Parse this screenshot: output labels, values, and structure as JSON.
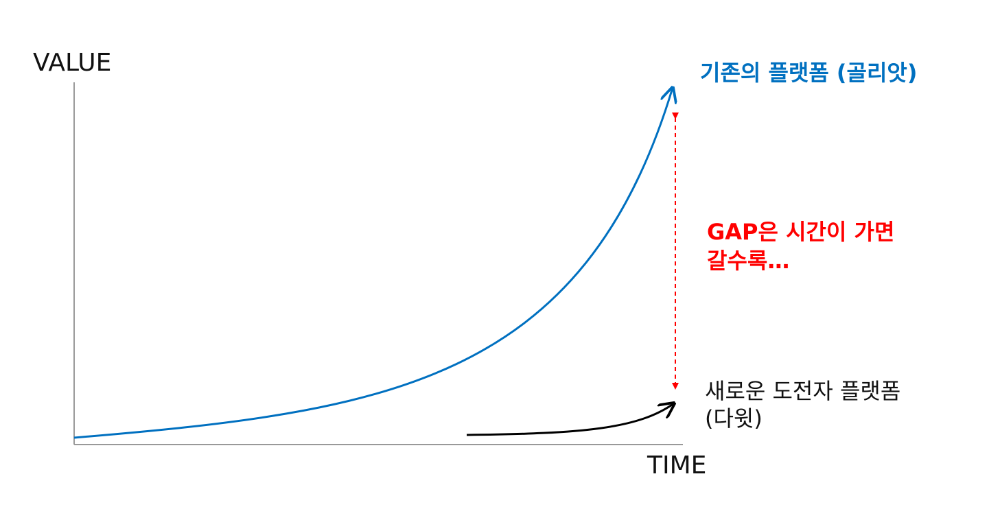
{
  "axes": {
    "y_label": "VALUE",
    "x_label": "TIME"
  },
  "curves": [
    {
      "label": [
        "기존의 플랫폼 (골리앗)"
      ]
    },
    {
      "label": [
        "새로운 도전자 플랫폼",
        "(다윗)"
      ]
    }
  ],
  "annotation": {
    "lines": [
      "GAP은 시간이 가면",
      "갈수록…"
    ]
  }
}
